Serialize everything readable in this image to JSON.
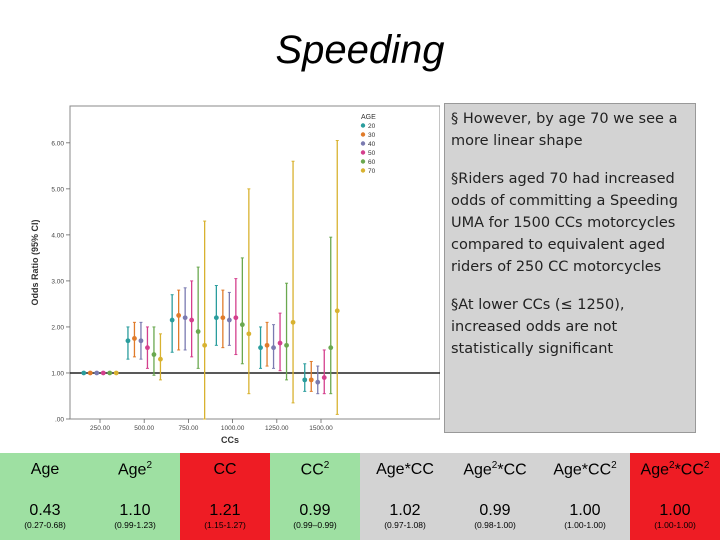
{
  "title": "Speeding",
  "colors": {
    "green_cell": "#9ee0a2",
    "red_cell": "#ee1c24",
    "callout_bg": "#d3d3d3"
  },
  "callout": {
    "p1": "§ However, by age 70 we see a more linear shape",
    "p2": "§Riders aged 70 had increased odds of committing a Speeding UMA for 1500 CCs motorcycles compared to equivalent aged riders of 250 CC motorcycles",
    "p3": "§At lower CCs (≤ 1250), increased odds are not statistically significant"
  },
  "chart_data": {
    "type": "scatter",
    "xlabel": "CCs",
    "ylabel": "Odds Ratio (95% CI)",
    "x_ticks": [
      "250.00",
      "500.00",
      "750.00",
      "1000.00",
      "1250.00",
      "1500.00"
    ],
    "y_ticks": [
      ".00",
      "1.00",
      "2.00",
      "3.00",
      "4.00",
      "5.00",
      "6.00"
    ],
    "ylim": [
      0,
      6.8
    ],
    "reference_line": 1.0,
    "legend_title": "AGE",
    "legend_position": "top-right",
    "grid": false,
    "categories": [
      250,
      500,
      750,
      1000,
      1250,
      1500
    ],
    "series": [
      {
        "name": "20",
        "color": "#2a9d9d",
        "values": [
          1.0,
          1.7,
          2.15,
          2.2,
          1.55,
          0.85
        ],
        "lower": [
          1.0,
          1.3,
          1.45,
          1.6,
          1.1,
          0.6
        ],
        "upper": [
          1.0,
          2.0,
          2.7,
          2.9,
          2.0,
          1.2
        ]
      },
      {
        "name": "30",
        "color": "#e07b2a",
        "values": [
          1.0,
          1.75,
          2.25,
          2.2,
          1.6,
          0.85
        ],
        "lower": [
          1.0,
          1.35,
          1.5,
          1.55,
          1.15,
          0.6
        ],
        "upper": [
          1.0,
          2.1,
          2.8,
          2.8,
          2.1,
          1.25
        ]
      },
      {
        "name": "40",
        "color": "#7a7ab0",
        "values": [
          1.0,
          1.7,
          2.2,
          2.15,
          1.55,
          0.8
        ],
        "lower": [
          1.0,
          1.3,
          1.5,
          1.6,
          1.1,
          0.55
        ],
        "upper": [
          1.0,
          2.1,
          2.85,
          2.75,
          2.05,
          1.15
        ]
      },
      {
        "name": "50",
        "color": "#d43f8d",
        "values": [
          1.0,
          1.55,
          2.15,
          2.2,
          1.65,
          0.9
        ],
        "lower": [
          1.0,
          1.1,
          1.35,
          1.4,
          1.05,
          0.55
        ],
        "upper": [
          1.0,
          2.0,
          3.0,
          3.05,
          2.3,
          1.5
        ]
      },
      {
        "name": "60",
        "color": "#6aa84f",
        "values": [
          1.0,
          1.4,
          1.9,
          2.05,
          1.6,
          1.55
        ],
        "lower": [
          1.0,
          0.95,
          1.1,
          1.2,
          0.85,
          0.55
        ],
        "upper": [
          1.0,
          2.0,
          3.3,
          3.5,
          2.95,
          3.95
        ]
      },
      {
        "name": "70",
        "color": "#d8b230",
        "values": [
          1.0,
          1.3,
          1.6,
          1.85,
          2.1,
          2.35
        ],
        "lower": [
          1.0,
          0.85,
          0.0,
          0.55,
          0.35,
          0.1
        ],
        "upper": [
          1.0,
          1.85,
          4.3,
          5.0,
          5.6,
          6.05
        ]
      }
    ]
  },
  "table": {
    "headers": [
      "Age",
      "Age2",
      "CC",
      "CC2",
      "Age*CC",
      "Age2*CC",
      "Age*CC2",
      "Age2*CC2"
    ],
    "values": [
      "0.43",
      "1.10",
      "1.21",
      "0.99",
      "1.02",
      "0.99",
      "1.00",
      "1.00"
    ],
    "cis": [
      "(0.27-0.68)",
      "(0.99-1.23)",
      "(1.15-1.27)",
      "(0.99–0.99)",
      "(0.97-1.08)",
      "(0.98-1.00)",
      "(1.00-1.00)",
      "(1.00-1.00)"
    ]
  }
}
